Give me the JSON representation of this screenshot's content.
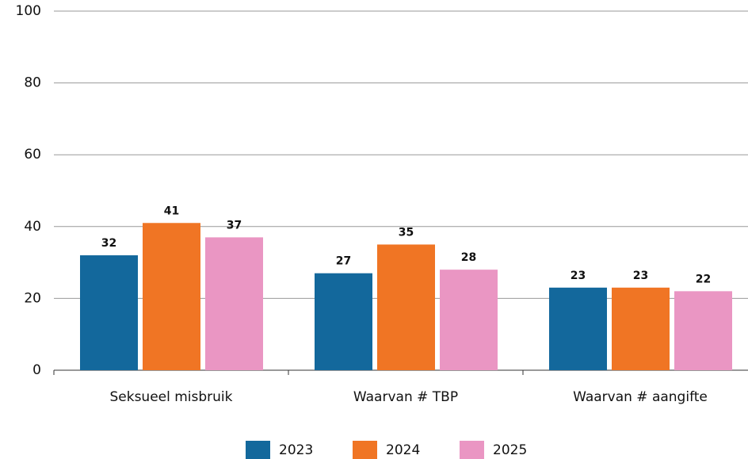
{
  "chart_data": {
    "type": "bar",
    "categories": [
      "Seksueel misbruik",
      "Waarvan # TBP",
      "Waarvan # aangifte"
    ],
    "series": [
      {
        "name": "2023",
        "color": "#13689c",
        "values": [
          32,
          27,
          23
        ]
      },
      {
        "name": "2024",
        "color": "#f07524",
        "values": [
          41,
          35,
          23
        ]
      },
      {
        "name": "2025",
        "color": "#ea96c3",
        "values": [
          37,
          28,
          22
        ]
      }
    ],
    "ylim": [
      0,
      100
    ],
    "yticks": [
      0,
      20,
      40,
      60,
      80,
      100
    ],
    "grid": true
  }
}
